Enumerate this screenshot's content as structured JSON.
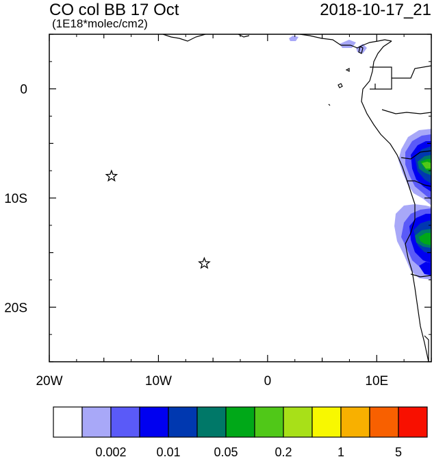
{
  "title": {
    "main": "CO col BB 17 Oct",
    "units": "(1E18*molec/cm2)",
    "datetime": "2018-10-17_21"
  },
  "map": {
    "lon_range": [
      -20,
      15
    ],
    "lat_range": [
      -25,
      5
    ],
    "x_ticks": [
      {
        "lon": -20,
        "label": "20W"
      },
      {
        "lon": -10,
        "label": "10W"
      },
      {
        "lon": 0,
        "label": "0"
      },
      {
        "lon": 10,
        "label": "10E"
      }
    ],
    "y_ticks": [
      {
        "lat": 0,
        "label": "0"
      },
      {
        "lat": -10,
        "label": "10S"
      },
      {
        "lat": -20,
        "label": "20S"
      }
    ],
    "markers": [
      {
        "name": "star-marker-1",
        "lon": -14.3,
        "lat": -8.0
      },
      {
        "name": "star-marker-2",
        "lon": -5.8,
        "lat": -16.0
      }
    ]
  },
  "colorbar": {
    "colors": [
      "#ffffff",
      "#a8a8f8",
      "#5a5af8",
      "#0000f0",
      "#0038b0",
      "#007868",
      "#00a818",
      "#50c818",
      "#a8e018",
      "#f8f800",
      "#f8b000",
      "#f86000",
      "#f81000"
    ],
    "labels": [
      {
        "boundary": 2,
        "text": "0.002"
      },
      {
        "boundary": 4,
        "text": "0.01"
      },
      {
        "boundary": 6,
        "text": "0.05"
      },
      {
        "boundary": 8,
        "text": "0.2"
      },
      {
        "boundary": 10,
        "text": "1"
      },
      {
        "boundary": 12,
        "text": "5"
      }
    ]
  }
}
